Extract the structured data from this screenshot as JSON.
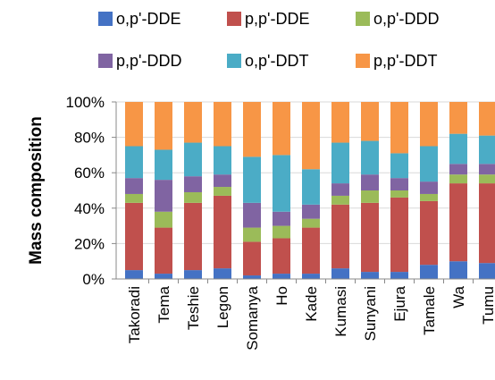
{
  "chart_data": {
    "type": "bar",
    "stacked": true,
    "normalized": true,
    "title": "",
    "xlabel": "",
    "ylabel": "Mass composition",
    "ylim": [
      0,
      100
    ],
    "y_ticks": [
      "0%",
      "20%",
      "40%",
      "60%",
      "80%",
      "100%"
    ],
    "legend_position": "top",
    "categories": [
      "Takoradi",
      "Tema",
      "Teshie",
      "Legon",
      "Somanya",
      "Ho",
      "Kade",
      "Kumasi",
      "Sunyani",
      "Ejura",
      "Tamale",
      "Wa",
      "Tumu"
    ],
    "series": [
      {
        "name": "o,p'-DDE",
        "color": "#4472C4",
        "values": [
          5,
          3,
          5,
          6,
          2,
          3,
          3,
          6,
          4,
          4,
          8,
          10,
          9
        ]
      },
      {
        "name": "p,p'-DDE",
        "color": "#C0504D",
        "values": [
          38,
          26,
          38,
          41,
          19,
          20,
          26,
          36,
          39,
          42,
          36,
          44,
          45
        ]
      },
      {
        "name": "o,p'-DDD",
        "color": "#9BBB59",
        "values": [
          5,
          9,
          6,
          5,
          8,
          7,
          5,
          5,
          7,
          4,
          4,
          5,
          5
        ]
      },
      {
        "name": "p,p'-DDD",
        "color": "#8064A2",
        "values": [
          9,
          18,
          9,
          7,
          14,
          8,
          8,
          7,
          9,
          7,
          7,
          6,
          6
        ]
      },
      {
        "name": "o,p'-DDT",
        "color": "#4BACC6",
        "values": [
          18,
          17,
          19,
          16,
          26,
          32,
          20,
          23,
          19,
          14,
          20,
          17,
          16
        ]
      },
      {
        "name": "p,p'-DDT",
        "color": "#F79646",
        "values": [
          25,
          27,
          23,
          25,
          31,
          30,
          38,
          23,
          22,
          29,
          25,
          18,
          19
        ]
      }
    ]
  }
}
